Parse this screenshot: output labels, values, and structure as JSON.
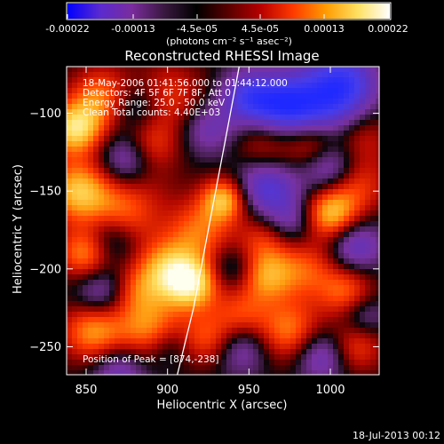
{
  "colorbar": {
    "ticks": [
      "-0.00022",
      "-0.00013",
      "-4.5e-05",
      "4.5e-05",
      "0.00013",
      "0.00022"
    ],
    "unit_label": "(photons cm⁻² s⁻¹ asec⁻²)",
    "stops": [
      "#0000ff",
      "#5a2ad0",
      "#7a2c9c",
      "#3a1840",
      "#000000",
      "#5a0000",
      "#b80000",
      "#ff3a00",
      "#ff9a00",
      "#ffe060",
      "#ffffff"
    ]
  },
  "chart_data": {
    "type": "heatmap",
    "title": "Reconstructed RHESSI Image",
    "xlabel": "Heliocentric X (arcsec)",
    "ylabel": "Heliocentric Y (arcsec)",
    "xlim": [
      838,
      1030
    ],
    "ylim": [
      -268,
      -70
    ],
    "xticks": [
      850,
      900,
      950,
      1000
    ],
    "yticks": [
      -100,
      -150,
      -200,
      -250
    ],
    "annotations": [
      "18-May-2006 01:41:56.000 to 01:44:12.000",
      "Detectors: 4F 5F 6F 7F 8F, Att 0",
      "Energy Range: 25.0 - 50.0 keV",
      "Clean    Total counts: 4.40E+03"
    ],
    "peak_label": "Position of Peak = [874,-238]",
    "limb_arc": [
      [
        944,
        -70
      ],
      [
        935,
        -120
      ],
      [
        925,
        -175
      ],
      [
        916,
        -225
      ],
      [
        906,
        -268
      ]
    ],
    "intensity_blobs": [
      [
        843,
        -110,
        1.0,
        12
      ],
      [
        860,
        -90,
        0.7,
        14
      ],
      [
        845,
        -150,
        0.9,
        14
      ],
      [
        870,
        -170,
        0.6,
        14
      ],
      [
        850,
        -190,
        0.8,
        12
      ],
      [
        880,
        -150,
        0.3,
        18
      ],
      [
        900,
        -90,
        0.5,
        16
      ],
      [
        890,
        -120,
        0.45,
        12
      ],
      [
        935,
        -155,
        0.9,
        10
      ],
      [
        920,
        -175,
        0.6,
        14
      ],
      [
        900,
        -200,
        0.8,
        14
      ],
      [
        915,
        -210,
        0.95,
        12
      ],
      [
        880,
        -215,
        0.5,
        12
      ],
      [
        890,
        -240,
        0.7,
        14
      ],
      [
        855,
        -240,
        0.8,
        14
      ],
      [
        925,
        -245,
        0.55,
        12
      ],
      [
        960,
        -125,
        0.5,
        14
      ],
      [
        990,
        -120,
        0.65,
        12
      ],
      [
        1015,
        -145,
        0.55,
        14
      ],
      [
        1000,
        -165,
        0.9,
        12
      ],
      [
        960,
        -180,
        0.5,
        12
      ],
      [
        985,
        -200,
        0.55,
        14
      ],
      [
        960,
        -205,
        0.7,
        12
      ],
      [
        1010,
        -215,
        0.6,
        12
      ],
      [
        975,
        -240,
        0.7,
        14
      ],
      [
        1015,
        -250,
        0.55,
        12
      ],
      [
        945,
        -230,
        0.5,
        12
      ],
      [
        1020,
        -115,
        0.35,
        12
      ],
      [
        990,
        -95,
        -0.9,
        18
      ],
      [
        1010,
        -80,
        -0.7,
        14
      ],
      [
        970,
        -95,
        -0.6,
        12
      ],
      [
        1000,
        -135,
        -0.7,
        12
      ],
      [
        960,
        -145,
        -0.8,
        14
      ],
      [
        1015,
        -185,
        -0.6,
        12
      ],
      [
        975,
        -170,
        -0.5,
        12
      ],
      [
        865,
        -180,
        -0.7,
        12
      ],
      [
        875,
        -130,
        -0.6,
        12
      ],
      [
        860,
        -215,
        -0.55,
        12
      ],
      [
        870,
        -265,
        -0.5,
        12
      ],
      [
        945,
        -250,
        -0.5,
        12
      ],
      [
        995,
        -255,
        -0.6,
        12
      ],
      [
        950,
        -90,
        -0.8,
        12
      ],
      [
        880,
        -95,
        -0.5,
        12
      ],
      [
        900,
        -250,
        -0.35,
        10
      ],
      [
        925,
        -110,
        -0.45,
        12
      ],
      [
        1020,
        -230,
        -0.4,
        10
      ],
      [
        940,
        -200,
        -0.35,
        10
      ]
    ]
  },
  "footer": {
    "timestamp": "18-Jul-2013 00:12"
  }
}
